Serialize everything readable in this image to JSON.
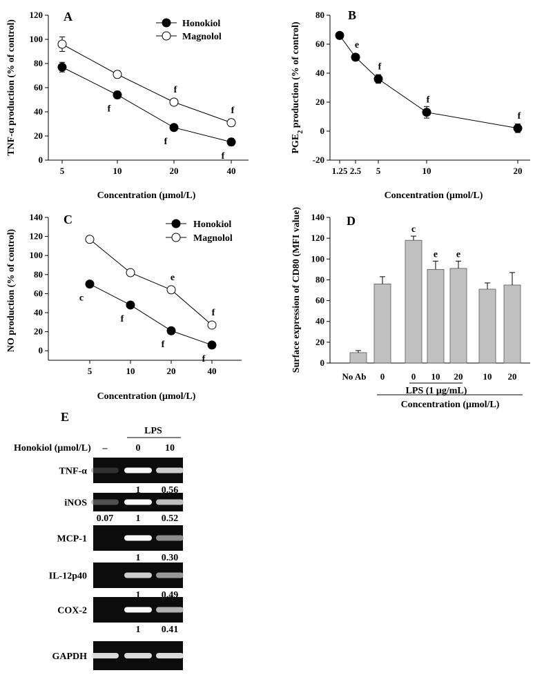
{
  "figure": {
    "panels": {
      "A": {
        "letter": "A",
        "ylabel": "TNF-α production (% of control)",
        "xlabel": "Concentration (μmol/L)",
        "legend": [
          "Honokiol",
          "Magnolol"
        ],
        "sig": {
          "honokiol": [
            "",
            "f",
            "f",
            "f"
          ],
          "magnolol": [
            "",
            "",
            "f",
            "f"
          ]
        }
      },
      "B": {
        "letter": "B",
        "ylabel_parts": [
          "PGE",
          "2",
          " production (% of control)"
        ],
        "xlabel": "Concentration (μmol/L)",
        "sig": [
          "",
          "e",
          "f",
          "f",
          "f"
        ]
      },
      "C": {
        "letter": "C",
        "ylabel": "NO production (% of control)",
        "xlabel": "Concentration (μmol/L)",
        "legend": [
          "Honokiol",
          "Magnolol"
        ],
        "sig": {
          "honokiol": [
            "c",
            "f",
            "f",
            "f"
          ],
          "magnolol": [
            "",
            "",
            "e",
            "f"
          ]
        }
      },
      "D": {
        "letter": "D",
        "ylabel": "Surface expression of CD80 (MFI value)",
        "category_labels": [
          "No Ab",
          "0",
          "0",
          "10",
          "20",
          "10",
          "20"
        ],
        "sig": [
          "",
          "",
          "c",
          "e",
          "e",
          "",
          ""
        ],
        "lps_label": "LPS (1 μg/mL)",
        "xlabel": "Concentration (μmol/L)"
      }
    },
    "blot": {
      "letter": "E",
      "lps_label": "LPS",
      "treatment_label": "Honokiol (μmol/L)",
      "lanes": [
        "–",
        "0",
        "10"
      ],
      "rows": [
        {
          "name": "TNF-α",
          "values": [
            "",
            "1",
            "0.56"
          ],
          "bands": [
            0.08,
            1.0,
            0.85
          ]
        },
        {
          "name": "iNOS",
          "values": [
            "0.07",
            "1",
            "0.52"
          ],
          "bands": [
            0.3,
            1.0,
            0.8
          ]
        },
        {
          "name": "MCP-1",
          "values": [
            "",
            "1",
            "0.30"
          ],
          "bands": [
            0.0,
            1.0,
            0.6
          ]
        },
        {
          "name": "IL-12p40",
          "values": [
            "",
            "1",
            "0.49"
          ],
          "bands": [
            0.0,
            0.85,
            0.65
          ]
        },
        {
          "name": "COX-2",
          "values": [
            "",
            "1",
            "0.41"
          ],
          "bands": [
            0.0,
            1.0,
            0.75
          ]
        },
        {
          "name": "GAPDH",
          "values": [
            "",
            "",
            ""
          ],
          "bands": [
            0.9,
            0.9,
            0.9
          ]
        }
      ]
    }
  },
  "chart_data": [
    {
      "type": "line",
      "panel": "A",
      "x": [
        5,
        10,
        20,
        40
      ],
      "xticks": [
        "5",
        "10",
        "20",
        "40"
      ],
      "ylim": [
        0,
        120
      ],
      "yticks": [
        0,
        20,
        40,
        60,
        80,
        100,
        120
      ],
      "series": [
        {
          "name": "Honokiol",
          "marker": "filled",
          "values": [
            77,
            54,
            27,
            15
          ],
          "err": [
            4,
            3,
            2,
            3
          ]
        },
        {
          "name": "Magnolol",
          "marker": "open",
          "values": [
            96,
            71,
            48,
            31
          ],
          "err": [
            6,
            3,
            2,
            3
          ]
        }
      ]
    },
    {
      "type": "line",
      "panel": "B",
      "x": [
        1.25,
        2.5,
        5,
        10,
        20
      ],
      "xticks": [
        "1.25",
        "2.5",
        "5",
        "10",
        "20"
      ],
      "ylim": [
        -20,
        80
      ],
      "yticks": [
        -20,
        0,
        20,
        40,
        60,
        80
      ],
      "series": [
        {
          "name": "",
          "marker": "filled",
          "values": [
            66,
            51,
            36,
            13,
            2
          ],
          "err": [
            2,
            2,
            3,
            4,
            3
          ]
        }
      ]
    },
    {
      "type": "line",
      "panel": "C",
      "x": [
        5,
        10,
        20,
        40
      ],
      "xticks": [
        "5",
        "10",
        "20",
        "40"
      ],
      "ylim": [
        -10,
        140
      ],
      "yticks": [
        0,
        20,
        40,
        60,
        80,
        100,
        120,
        140
      ],
      "series": [
        {
          "name": "Honokiol",
          "marker": "filled",
          "values": [
            70,
            48,
            21,
            6
          ],
          "err": [
            1,
            1,
            1,
            1
          ]
        },
        {
          "name": "Magnolol",
          "marker": "open",
          "values": [
            117,
            82,
            64,
            27
          ],
          "err": [
            1,
            1,
            1,
            1
          ]
        }
      ]
    },
    {
      "type": "bar",
      "panel": "D",
      "categories": [
        "No Ab",
        "0",
        "0",
        "10",
        "20",
        "10",
        "20"
      ],
      "values": [
        10,
        76,
        118,
        90,
        91,
        71,
        75
      ],
      "err": [
        2,
        7,
        4,
        8,
        7,
        6,
        12
      ],
      "ylim": [
        0,
        140
      ],
      "yticks": [
        0,
        20,
        40,
        60,
        80,
        100,
        120,
        140
      ],
      "color": "#c0c0c0"
    }
  ]
}
